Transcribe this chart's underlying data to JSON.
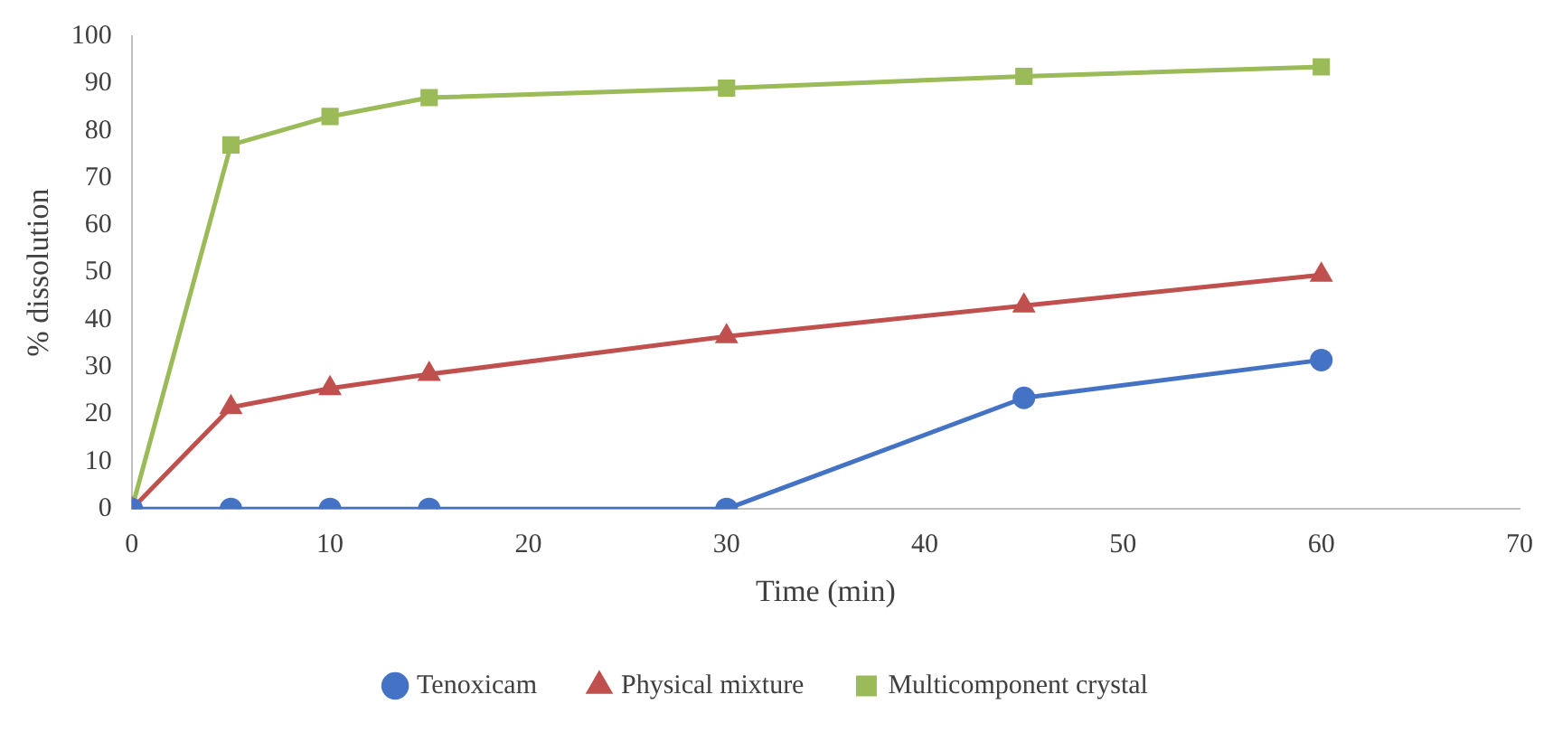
{
  "chart_data": {
    "type": "line",
    "xlabel": "Time (min)",
    "ylabel": "% dissolution",
    "x": [
      0,
      5,
      10,
      15,
      30,
      45,
      60
    ],
    "xlim": [
      0,
      70
    ],
    "xticks": [
      0,
      10,
      20,
      30,
      40,
      50,
      60,
      70
    ],
    "ylim": [
      0,
      100
    ],
    "yticks": [
      0,
      10,
      20,
      30,
      40,
      50,
      60,
      70,
      80,
      90,
      100
    ],
    "grid": false,
    "legend": "bottom",
    "line_style": "solid",
    "series": [
      {
        "name": "Tenoxicam",
        "color": "#4472c4",
        "marker": "circle",
        "values": [
          0,
          0,
          0,
          0,
          0,
          23.5,
          31.5
        ]
      },
      {
        "name": "Physical mixture",
        "color": "#c0504d",
        "marker": "triangle",
        "values": [
          0,
          21.5,
          25.5,
          28.5,
          36.5,
          43,
          49.5
        ]
      },
      {
        "name": "Multicomponent crystal",
        "color": "#9bbb59",
        "marker": "square",
        "values": [
          0,
          77,
          83,
          87,
          89,
          91.5,
          93.5
        ]
      }
    ]
  }
}
